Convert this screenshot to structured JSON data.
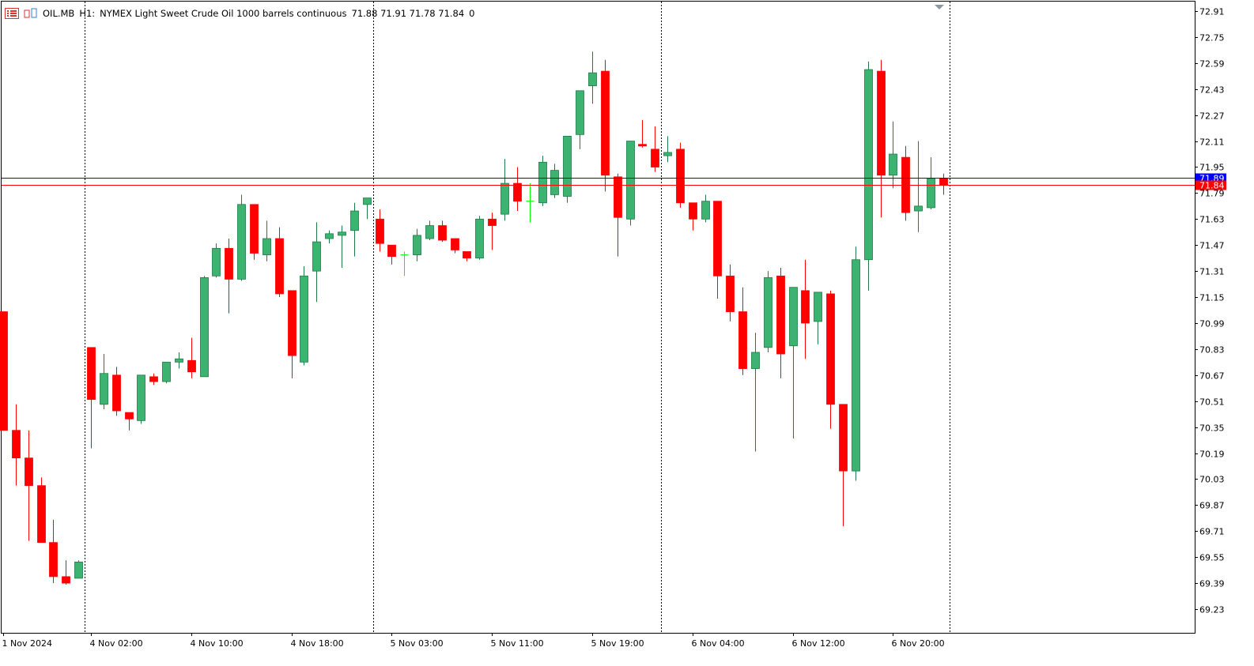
{
  "header": {
    "symbol": "OIL.MB",
    "timeframe": "H1:",
    "description": "NYMEX Light Sweet Crude Oil 1000 barrels continuous",
    "ohlc": "71.88 71.91 71.78 71.84",
    "volume": "0"
  },
  "colors": {
    "bull": "#3cb371",
    "bear": "#ff0000",
    "doji": "#00ff00",
    "bid_line": "#0000ff",
    "ask_line": "#ff0000",
    "frame": "#000000"
  },
  "chart_data": {
    "type": "candlestick",
    "ylim": [
      69.15,
      72.96
    ],
    "y_ticks": [
      "72.91",
      "72.75",
      "72.59",
      "72.43",
      "72.27",
      "72.11",
      "71.95",
      "71.79",
      "71.63",
      "71.47",
      "71.31",
      "71.15",
      "70.99",
      "70.83",
      "70.67",
      "70.51",
      "70.35",
      "70.19",
      "70.03",
      "69.87",
      "69.71",
      "69.55",
      "69.39",
      "69.23"
    ],
    "x_labels": [
      "1 Nov 2024",
      "4 Nov 02:00",
      "4 Nov 10:00",
      "4 Nov 18:00",
      "5 Nov 03:00",
      "5 Nov 11:00",
      "5 Nov 19:00",
      "6 Nov 04:00",
      "6 Nov 12:00",
      "6 Nov 20:00"
    ],
    "x_label_index": [
      0,
      7,
      15,
      23,
      31,
      39,
      47,
      55,
      63,
      71
    ],
    "session_breaks_after_index": [
      6,
      29,
      52,
      75
    ],
    "price_lines": [
      {
        "label": "71.89",
        "price": 71.885,
        "kind": "bid"
      },
      {
        "label": "71.84",
        "price": 71.84,
        "kind": "last"
      }
    ],
    "candles": [
      {
        "o": 71.06,
        "h": 71.06,
        "l": 70.33,
        "c": 70.33
      },
      {
        "o": 70.33,
        "h": 70.49,
        "l": 69.99,
        "c": 70.16
      },
      {
        "o": 70.16,
        "h": 70.33,
        "l": 69.65,
        "c": 69.99
      },
      {
        "o": 69.99,
        "h": 70.04,
        "l": 69.65,
        "c": 69.64
      },
      {
        "o": 69.64,
        "h": 69.78,
        "l": 69.39,
        "c": 69.43
      },
      {
        "o": 69.43,
        "h": 69.53,
        "l": 69.38,
        "c": 69.39
      },
      {
        "o": 69.42,
        "h": 69.53,
        "l": 69.42,
        "c": 69.52
      },
      {
        "o": 70.84,
        "h": 70.84,
        "l": 70.22,
        "c": 70.52
      },
      {
        "o": 70.49,
        "h": 70.8,
        "l": 70.46,
        "c": 70.68
      },
      {
        "o": 70.67,
        "h": 70.72,
        "l": 70.42,
        "c": 70.45
      },
      {
        "o": 70.44,
        "h": 70.44,
        "l": 70.33,
        "c": 70.4
      },
      {
        "o": 70.39,
        "h": 70.67,
        "l": 70.37,
        "c": 70.67
      },
      {
        "o": 70.66,
        "h": 70.68,
        "l": 70.61,
        "c": 70.63
      },
      {
        "o": 70.63,
        "h": 70.75,
        "l": 70.62,
        "c": 70.75
      },
      {
        "o": 70.75,
        "h": 70.81,
        "l": 70.71,
        "c": 70.77
      },
      {
        "o": 70.76,
        "h": 70.9,
        "l": 70.65,
        "c": 70.69
      },
      {
        "o": 70.66,
        "h": 71.28,
        "l": 70.66,
        "c": 71.27
      },
      {
        "o": 71.28,
        "h": 71.48,
        "l": 71.27,
        "c": 71.45
      },
      {
        "o": 71.45,
        "h": 71.51,
        "l": 71.05,
        "c": 71.26
      },
      {
        "o": 71.26,
        "h": 71.78,
        "l": 71.25,
        "c": 71.72
      },
      {
        "o": 71.72,
        "h": 71.72,
        "l": 71.38,
        "c": 71.42
      },
      {
        "o": 71.41,
        "h": 71.62,
        "l": 71.37,
        "c": 71.51
      },
      {
        "o": 71.51,
        "h": 71.58,
        "l": 71.15,
        "c": 71.17
      },
      {
        "o": 71.19,
        "h": 71.19,
        "l": 70.65,
        "c": 70.79
      },
      {
        "o": 70.75,
        "h": 71.34,
        "l": 70.73,
        "c": 71.28
      },
      {
        "o": 71.31,
        "h": 71.61,
        "l": 71.12,
        "c": 71.49
      },
      {
        "o": 71.51,
        "h": 71.56,
        "l": 71.48,
        "c": 71.54
      },
      {
        "o": 71.53,
        "h": 71.59,
        "l": 71.33,
        "c": 71.55
      },
      {
        "o": 71.56,
        "h": 71.73,
        "l": 71.4,
        "c": 71.68
      },
      {
        "o": 71.72,
        "h": 71.76,
        "l": 71.63,
        "c": 71.76
      },
      {
        "o": 71.63,
        "h": 71.69,
        "l": 71.43,
        "c": 71.48
      },
      {
        "o": 71.47,
        "h": 71.47,
        "l": 71.35,
        "c": 71.4
      },
      {
        "o": 71.41,
        "h": 71.43,
        "l": 71.28,
        "c": 71.41
      },
      {
        "o": 71.41,
        "h": 71.57,
        "l": 71.37,
        "c": 71.53
      },
      {
        "o": 71.51,
        "h": 71.62,
        "l": 71.5,
        "c": 71.59
      },
      {
        "o": 71.59,
        "h": 71.62,
        "l": 71.49,
        "c": 71.5
      },
      {
        "o": 71.51,
        "h": 71.51,
        "l": 71.42,
        "c": 71.44
      },
      {
        "o": 71.43,
        "h": 71.43,
        "l": 71.37,
        "c": 71.39
      },
      {
        "o": 71.39,
        "h": 71.65,
        "l": 71.38,
        "c": 71.63
      },
      {
        "o": 71.63,
        "h": 71.67,
        "l": 71.44,
        "c": 71.59
      },
      {
        "o": 71.66,
        "h": 72.0,
        "l": 71.62,
        "c": 71.85
      },
      {
        "o": 71.85,
        "h": 71.95,
        "l": 71.68,
        "c": 71.74
      },
      {
        "o": 71.74,
        "h": 71.85,
        "l": 71.61,
        "c": 71.74
      },
      {
        "o": 71.73,
        "h": 72.02,
        "l": 71.71,
        "c": 71.98
      },
      {
        "o": 71.78,
        "h": 71.97,
        "l": 71.76,
        "c": 71.93
      },
      {
        "o": 71.77,
        "h": 72.14,
        "l": 71.73,
        "c": 72.14
      },
      {
        "o": 72.15,
        "h": 72.42,
        "l": 72.06,
        "c": 72.42
      },
      {
        "o": 72.45,
        "h": 72.66,
        "l": 72.34,
        "c": 72.53
      },
      {
        "o": 72.54,
        "h": 72.61,
        "l": 71.8,
        "c": 71.9
      },
      {
        "o": 71.89,
        "h": 71.91,
        "l": 71.4,
        "c": 71.64
      },
      {
        "o": 71.63,
        "h": 72.11,
        "l": 71.59,
        "c": 72.11
      },
      {
        "o": 72.09,
        "h": 72.24,
        "l": 72.07,
        "c": 72.08
      },
      {
        "o": 72.06,
        "h": 72.2,
        "l": 71.92,
        "c": 71.95
      },
      {
        "o": 72.02,
        "h": 72.14,
        "l": 71.98,
        "c": 72.04
      },
      {
        "o": 72.06,
        "h": 72.1,
        "l": 71.7,
        "c": 71.73
      },
      {
        "o": 71.73,
        "h": 71.73,
        "l": 71.56,
        "c": 71.63
      },
      {
        "o": 71.63,
        "h": 71.78,
        "l": 71.61,
        "c": 71.74
      },
      {
        "o": 71.74,
        "h": 71.74,
        "l": 71.14,
        "c": 71.28
      },
      {
        "o": 71.28,
        "h": 71.35,
        "l": 71.0,
        "c": 71.06
      },
      {
        "o": 71.06,
        "h": 71.21,
        "l": 70.67,
        "c": 70.71
      },
      {
        "o": 70.71,
        "h": 70.93,
        "l": 70.2,
        "c": 70.81
      },
      {
        "o": 70.84,
        "h": 71.31,
        "l": 70.81,
        "c": 71.27
      },
      {
        "o": 71.28,
        "h": 71.33,
        "l": 70.65,
        "c": 70.8
      },
      {
        "o": 70.85,
        "h": 71.21,
        "l": 70.28,
        "c": 71.21
      },
      {
        "o": 71.19,
        "h": 71.38,
        "l": 70.77,
        "c": 70.99
      },
      {
        "o": 71.0,
        "h": 71.18,
        "l": 70.86,
        "c": 71.18
      },
      {
        "o": 71.17,
        "h": 71.19,
        "l": 70.34,
        "c": 70.49
      },
      {
        "o": 70.49,
        "h": 70.49,
        "l": 69.74,
        "c": 70.08
      },
      {
        "o": 70.08,
        "h": 71.46,
        "l": 70.02,
        "c": 71.38
      },
      {
        "o": 71.38,
        "h": 72.6,
        "l": 71.19,
        "c": 72.55
      },
      {
        "o": 72.54,
        "h": 72.61,
        "l": 71.64,
        "c": 71.9
      },
      {
        "o": 71.9,
        "h": 72.23,
        "l": 71.82,
        "c": 72.03
      },
      {
        "o": 72.01,
        "h": 72.08,
        "l": 71.62,
        "c": 71.67
      },
      {
        "o": 71.68,
        "h": 72.11,
        "l": 71.55,
        "c": 71.71
      },
      {
        "o": 71.7,
        "h": 72.01,
        "l": 71.69,
        "c": 71.88
      },
      {
        "o": 71.88,
        "h": 71.91,
        "l": 71.78,
        "c": 71.84
      }
    ]
  }
}
